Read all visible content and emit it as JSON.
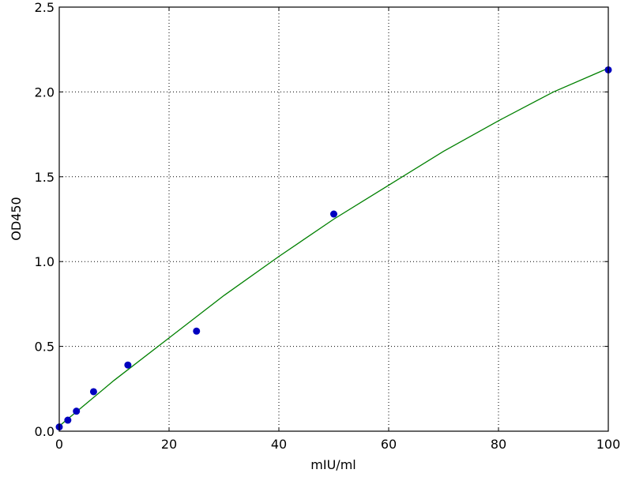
{
  "chart_data": {
    "type": "scatter",
    "title": "",
    "xlabel": "mIU/ml",
    "ylabel": "OD450",
    "xlim": [
      0,
      100
    ],
    "ylim": [
      0,
      2.5
    ],
    "xticks": [
      "0",
      "20",
      "40",
      "60",
      "80",
      "100"
    ],
    "yticks": [
      "0.0",
      "0.5",
      "1.0",
      "1.5",
      "2.0",
      "2.5"
    ],
    "grid": true,
    "series": [
      {
        "kind": "points",
        "color": "#0000bf",
        "x": [
          0,
          1.5625,
          3.125,
          6.25,
          12.5,
          25,
          50,
          100
        ],
        "y": [
          0.025,
          0.065,
          0.118,
          0.233,
          0.39,
          0.59,
          1.28,
          2.13
        ]
      },
      {
        "kind": "fit-line",
        "color": "#008000",
        "x": [
          0,
          10,
          20,
          30,
          40,
          50,
          60,
          70,
          80,
          90,
          100
        ],
        "y": [
          0.03,
          0.3,
          0.55,
          0.8,
          1.03,
          1.25,
          1.45,
          1.65,
          1.83,
          2.0,
          2.14
        ]
      }
    ]
  }
}
